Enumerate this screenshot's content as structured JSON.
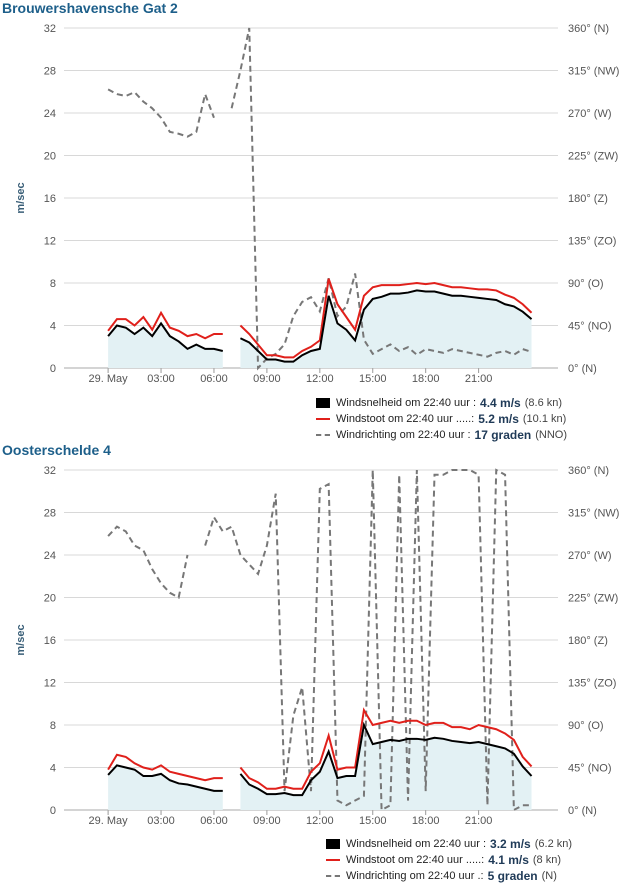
{
  "stations": [
    {
      "title": "Brouwershavensche Gat 2",
      "legend": [
        {
          "label": "Windsnelheid om 22:40 uur :",
          "value": "4.4 m/s",
          "extra": "(8.6 kn)"
        },
        {
          "label": "Windstoot om 22:40 uur .....:",
          "value": "5.2 m/s",
          "extra": "(10.1 kn)"
        },
        {
          "label": "Windrichting om 22:40 uur :",
          "value": "17 graden",
          "extra": "(NNO)"
        }
      ]
    },
    {
      "title": "Oosterschelde 4",
      "legend": [
        {
          "label": "Windsnelheid om 22:40 uur :",
          "value": "3.2 m/s",
          "extra": "(6.2 kn)"
        },
        {
          "label": "Windstoot om 22:40 uur .....:",
          "value": "4.1 m/s",
          "extra": "(8 kn)"
        },
        {
          "label": "Windrichting om 22:40 uur .:",
          "value": "5 graden",
          "extra": "(N)"
        }
      ]
    }
  ],
  "chart_data": [
    {
      "type": "line",
      "title": "Brouwershavensche Gat 2",
      "ylabel": "m/sec",
      "ylim": [
        0,
        32
      ],
      "y_ticks": [
        "0",
        "4",
        "8",
        "12",
        "16",
        "20",
        "24",
        "28",
        "32"
      ],
      "y2lim": [
        0,
        360
      ],
      "y2_ticks": [
        "0° (N)",
        "45° (NO)",
        "90° (O)",
        "135° (ZO)",
        "180° (Z)",
        "225° (ZW)",
        "270° (W)",
        "315° (NW)",
        "360° (N)"
      ],
      "x_ticks": [
        "29. May",
        "03:00",
        "06:00",
        "09:00",
        "12:00",
        "15:00",
        "18:00",
        "21:00"
      ],
      "grid": true,
      "legend_position": "bottom-right",
      "colors": {
        "speed": "#000000",
        "gust": "#e0201b",
        "direction": "#777777",
        "fill": "#e3f1f4"
      },
      "series": [
        {
          "name": "Windsnelheid",
          "x": [
            0,
            0.5,
            1,
            1.5,
            2,
            2.5,
            3,
            3.5,
            4,
            4.5,
            5,
            5.5,
            6,
            6.5,
            7,
            7.5,
            8,
            8.5,
            9,
            9.5,
            10,
            10.5,
            11,
            11.5,
            12,
            12.5,
            13,
            13.5,
            14,
            14.5,
            15,
            15.5,
            16,
            16.5,
            17,
            17.5,
            18,
            18.5,
            19,
            19.5,
            20,
            20.5,
            21,
            21.5,
            22,
            22.5,
            23,
            23.5,
            24
          ],
          "values": [
            3,
            4,
            3.8,
            3.2,
            3.8,
            3,
            4.2,
            3,
            2.5,
            1.8,
            2.2,
            1.8,
            1.8,
            1.6,
            null,
            2.8,
            2.4,
            1.6,
            0.8,
            0.8,
            0.6,
            0.6,
            1.2,
            1.6,
            1.8,
            6.8,
            4.2,
            3.6,
            2.6,
            5.5,
            6.5,
            6.7,
            7,
            7,
            7.1,
            7.3,
            7.2,
            7.2,
            7,
            6.8,
            6.8,
            6.7,
            6.6,
            6.5,
            6.4,
            6,
            5.8,
            5.3,
            4.6
          ]
        },
        {
          "name": "Windstoot",
          "x": [
            0,
            0.5,
            1,
            1.5,
            2,
            2.5,
            3,
            3.5,
            4,
            4.5,
            5,
            5.5,
            6,
            6.5,
            7,
            7.5,
            8,
            8.5,
            9,
            9.5,
            10,
            10.5,
            11,
            11.5,
            12,
            12.5,
            13,
            13.5,
            14,
            14.5,
            15,
            15.5,
            16,
            16.5,
            17,
            17.5,
            18,
            18.5,
            19,
            19.5,
            20,
            20.5,
            21,
            21.5,
            22,
            22.5,
            23,
            23.5,
            24
          ],
          "values": [
            3.5,
            4.6,
            4.6,
            4,
            4.8,
            3.6,
            5.2,
            3.8,
            3.5,
            3,
            3.2,
            2.8,
            3.2,
            3.2,
            null,
            4,
            3.2,
            2.2,
            1.2,
            1.2,
            1,
            1,
            1.6,
            2,
            2.6,
            8.4,
            6,
            4.8,
            3.6,
            6.8,
            7.6,
            7.8,
            7.8,
            7.8,
            7.9,
            8,
            7.9,
            8,
            7.8,
            7.6,
            7.6,
            7.5,
            7.4,
            7.4,
            7.3,
            6.9,
            6.6,
            6,
            5.2
          ]
        },
        {
          "name": "Windrichting",
          "x": [
            0,
            0.5,
            1,
            1.5,
            2,
            2.5,
            3,
            3.5,
            4,
            4.5,
            5,
            5.5,
            6,
            6.5,
            7,
            7.5,
            8,
            8.5,
            9,
            9.5,
            10,
            10.5,
            11,
            11.5,
            12,
            12.5,
            13,
            13.5,
            14,
            14.5,
            15,
            15.5,
            16,
            16.5,
            17,
            17.5,
            18,
            18.5,
            19,
            19.5,
            20,
            20.5,
            21,
            21.5,
            22,
            22.5,
            23,
            23.5,
            24
          ],
          "values": [
            295,
            290,
            288,
            292,
            282,
            275,
            265,
            250,
            248,
            245,
            250,
            290,
            265,
            null,
            275,
            315,
            360,
            0,
            10,
            15,
            25,
            55,
            70,
            75,
            60,
            95,
            55,
            65,
            100,
            30,
            15,
            20,
            25,
            18,
            22,
            14,
            20,
            18,
            16,
            20,
            18,
            16,
            14,
            12,
            16,
            18,
            14,
            20,
            17
          ]
        }
      ]
    },
    {
      "type": "line",
      "title": "Oosterschelde 4",
      "ylabel": "m/sec",
      "ylim": [
        0,
        32
      ],
      "y_ticks": [
        "0",
        "4",
        "8",
        "12",
        "16",
        "20",
        "24",
        "28",
        "32"
      ],
      "y2lim": [
        0,
        360
      ],
      "y2_ticks": [
        "0° (N)",
        "45° (NO)",
        "90° (O)",
        "135° (ZO)",
        "180° (Z)",
        "225° (ZW)",
        "270° (W)",
        "315° (NW)",
        "360° (N)"
      ],
      "x_ticks": [
        "29. May",
        "03:00",
        "06:00",
        "09:00",
        "12:00",
        "15:00",
        "18:00",
        "21:00"
      ],
      "grid": true,
      "legend_position": "bottom-right",
      "colors": {
        "speed": "#000000",
        "gust": "#e0201b",
        "direction": "#777777",
        "fill": "#e3f1f4"
      },
      "series": [
        {
          "name": "Windsnelheid",
          "x": [
            0,
            0.5,
            1,
            1.5,
            2,
            2.5,
            3,
            3.5,
            4,
            4.5,
            5,
            5.5,
            6,
            6.5,
            7,
            7.5,
            8,
            8.5,
            9,
            9.5,
            10,
            10.5,
            11,
            11.5,
            12,
            12.5,
            13,
            13.5,
            14,
            14.5,
            15,
            15.5,
            16,
            16.5,
            17,
            17.5,
            18,
            18.5,
            19,
            19.5,
            20,
            20.5,
            21,
            21.5,
            22,
            22.5,
            23,
            23.5,
            24
          ],
          "values": [
            3.3,
            4.2,
            4,
            3.8,
            3.2,
            3.2,
            3.4,
            2.8,
            2.5,
            2.4,
            2.2,
            2,
            1.8,
            1.8,
            null,
            3.4,
            2.4,
            2,
            1.5,
            1.5,
            1.6,
            1.4,
            1.4,
            2.8,
            3.6,
            5.5,
            3,
            3.2,
            3.2,
            8,
            6.2,
            6.4,
            6.6,
            6.5,
            6.7,
            6.7,
            6.6,
            6.8,
            6.7,
            6.5,
            6.4,
            6.3,
            6.4,
            6.2,
            6,
            5.8,
            5.3,
            4.1,
            3.2
          ]
        },
        {
          "name": "Windstoot",
          "x": [
            0,
            0.5,
            1,
            1.5,
            2,
            2.5,
            3,
            3.5,
            4,
            4.5,
            5,
            5.5,
            6,
            6.5,
            7,
            7.5,
            8,
            8.5,
            9,
            9.5,
            10,
            10.5,
            11,
            11.5,
            12,
            12.5,
            13,
            13.5,
            14,
            14.5,
            15,
            15.5,
            16,
            16.5,
            17,
            17.5,
            18,
            18.5,
            19,
            19.5,
            20,
            20.5,
            21,
            21.5,
            22,
            22.5,
            23,
            23.5,
            24
          ],
          "values": [
            3.8,
            5.2,
            5,
            4.4,
            4,
            3.8,
            4.2,
            3.6,
            3.4,
            3.2,
            3,
            2.8,
            3,
            3,
            null,
            4,
            3,
            2.6,
            2,
            2,
            2.2,
            2,
            2,
            3.6,
            4.4,
            7,
            3.8,
            4,
            4,
            9.4,
            8,
            8.2,
            8.4,
            8.2,
            8.4,
            8.4,
            8,
            8.2,
            8.2,
            7.8,
            7.8,
            7.6,
            8,
            7.8,
            7.6,
            7.2,
            6.6,
            5,
            4.1
          ]
        },
        {
          "name": "Windrichting",
          "x": [
            0,
            0.5,
            1,
            1.5,
            2,
            2.5,
            3,
            3.5,
            4,
            4.5,
            5,
            5.5,
            6,
            6.5,
            7,
            7.5,
            8,
            8.5,
            9,
            9.5,
            10,
            10.5,
            11,
            11.5,
            12,
            12.5,
            13,
            13.5,
            14,
            14.5,
            15,
            15.5,
            16,
            16.5,
            17,
            17.5,
            18,
            18.5,
            19,
            19.5,
            20,
            20.5,
            21,
            21.5,
            22,
            22.5,
            23,
            23.5,
            24
          ],
          "values": [
            290,
            300,
            295,
            280,
            275,
            255,
            240,
            230,
            225,
            270,
            null,
            280,
            310,
            295,
            300,
            270,
            260,
            250,
            280,
            335,
            20,
            100,
            130,
            20,
            340,
            345,
            10,
            5,
            10,
            15,
            360,
            0,
            5,
            355,
            10,
            360,
            20,
            355,
            355,
            360,
            360,
            360,
            355,
            5,
            360,
            355,
            0,
            5,
            5
          ]
        }
      ]
    }
  ]
}
